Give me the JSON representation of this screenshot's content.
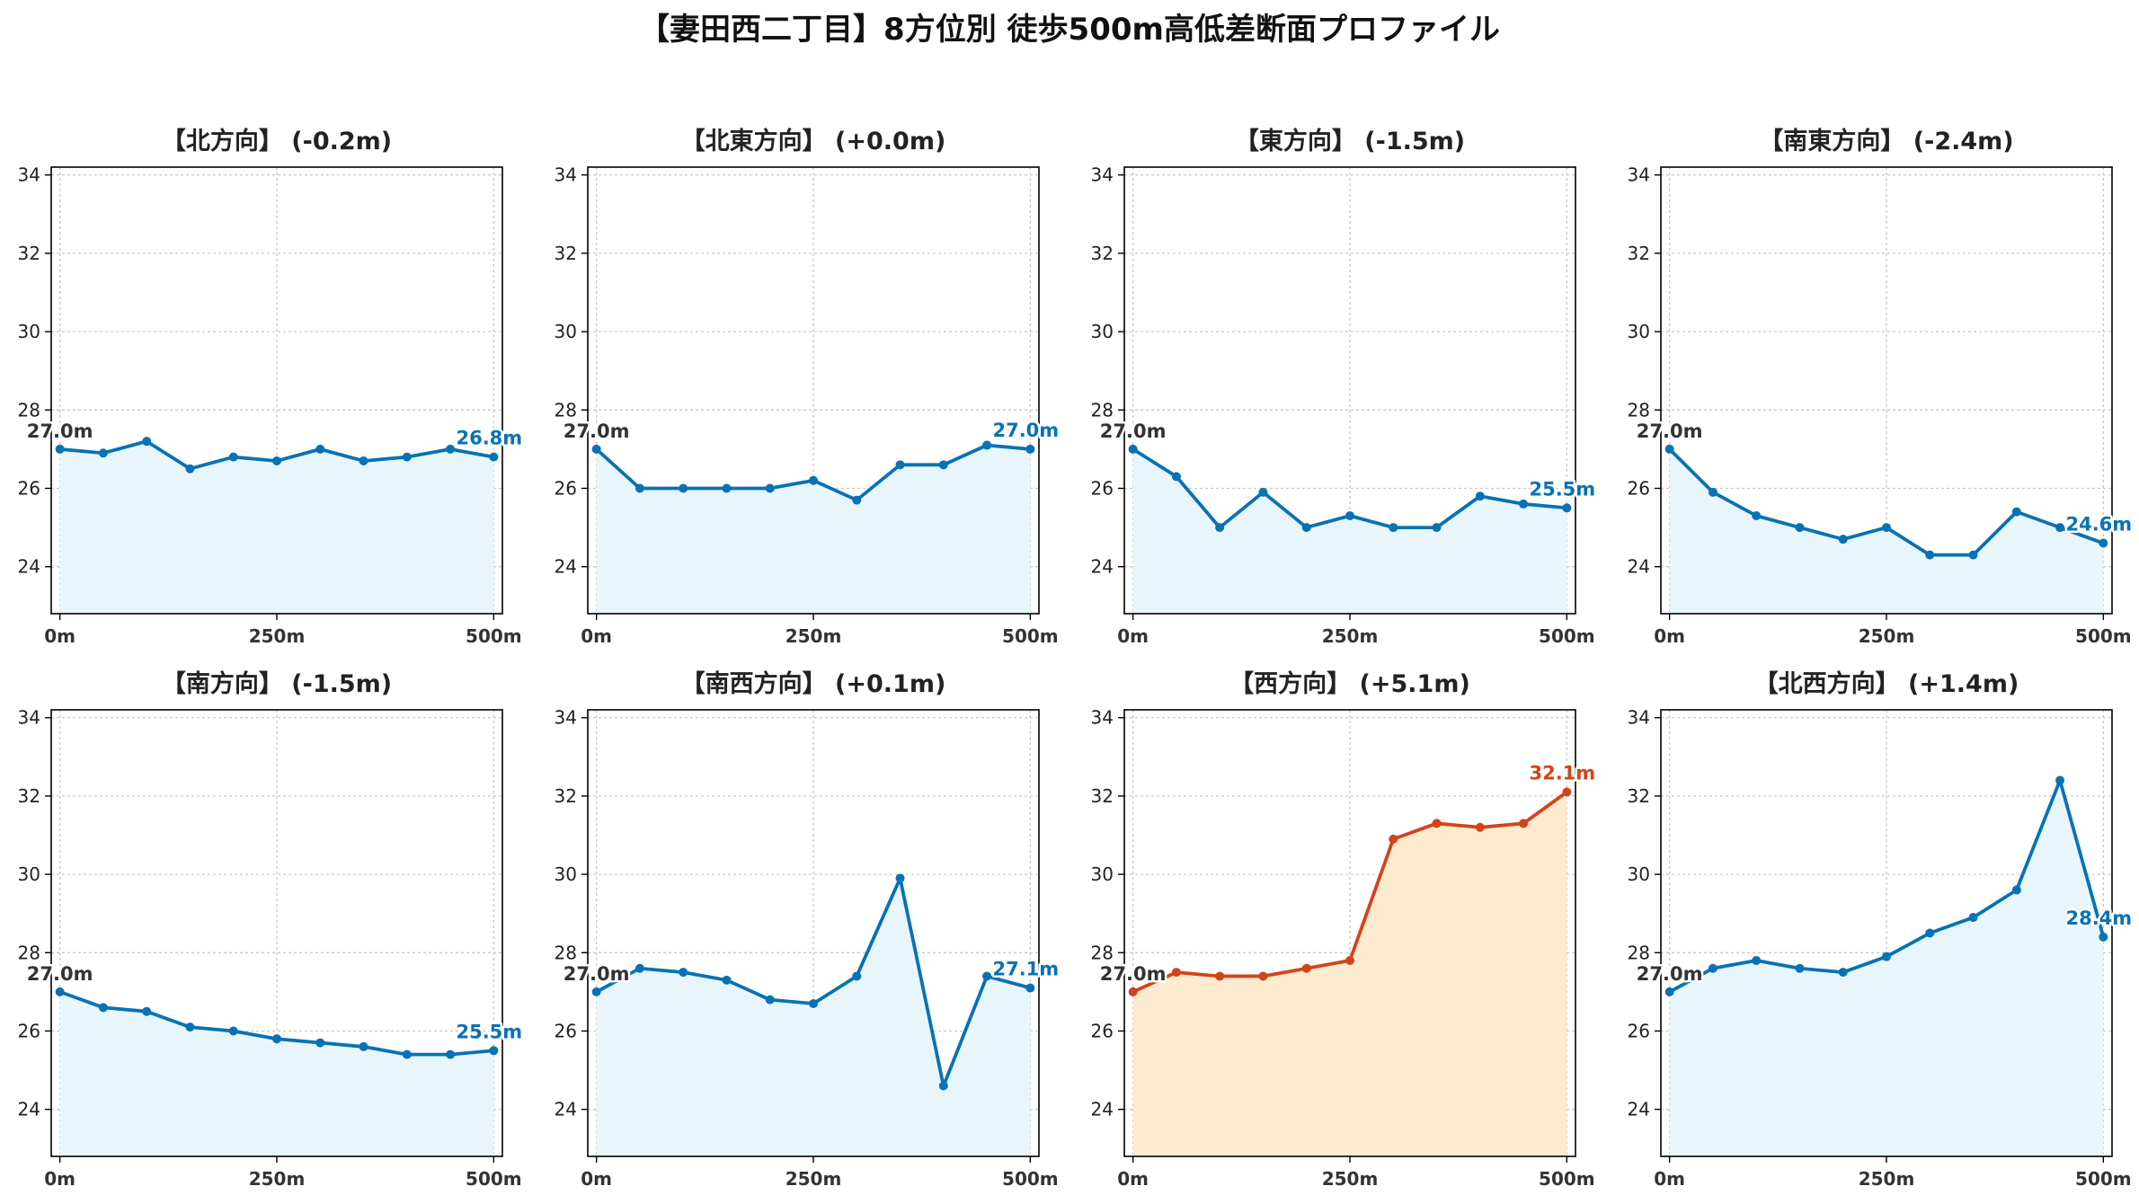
{
  "figure": {
    "title": "【妻田西二丁目】8方位別 徒歩500m高低差断面プロファイル"
  },
  "colors": {
    "line_default": "#0872b4",
    "fill_default": "#e8f6fc",
    "line_highlight": "#d2441a",
    "fill_highlight": "#fdebcf",
    "start_label": "#333333"
  },
  "chart_data": [
    {
      "type": "area",
      "title": "【北方向】 (-0.2m)",
      "x": [
        0,
        50,
        100,
        150,
        200,
        250,
        300,
        350,
        400,
        450,
        500
      ],
      "y": [
        27.0,
        26.9,
        27.2,
        26.5,
        26.8,
        26.7,
        27.0,
        26.7,
        26.8,
        27.0,
        26.8
      ],
      "start_label": "27.0m",
      "end_label": "26.8m",
      "highlight": false,
      "xticks": [
        "0m",
        "250m",
        "500m"
      ],
      "xtick_values": [
        0,
        250,
        500
      ],
      "yticks": [
        "24",
        "26",
        "28",
        "30",
        "32",
        "34"
      ],
      "ytick_values": [
        24,
        26,
        28,
        30,
        32,
        34
      ],
      "xlim": [
        -10,
        510
      ],
      "ylim": [
        22.8,
        34.2
      ],
      "grid": true
    },
    {
      "type": "area",
      "title": "【北東方向】 (+0.0m)",
      "x": [
        0,
        50,
        100,
        150,
        200,
        250,
        300,
        350,
        400,
        450,
        500
      ],
      "y": [
        27.0,
        26.0,
        26.0,
        26.0,
        26.0,
        26.2,
        25.7,
        26.6,
        26.6,
        27.1,
        27.0
      ],
      "start_label": "27.0m",
      "end_label": "27.0m",
      "highlight": false,
      "xticks": [
        "0m",
        "250m",
        "500m"
      ],
      "xtick_values": [
        0,
        250,
        500
      ],
      "yticks": [
        "24",
        "26",
        "28",
        "30",
        "32",
        "34"
      ],
      "ytick_values": [
        24,
        26,
        28,
        30,
        32,
        34
      ],
      "xlim": [
        -10,
        510
      ],
      "ylim": [
        22.8,
        34.2
      ],
      "grid": true
    },
    {
      "type": "area",
      "title": "【東方向】 (-1.5m)",
      "x": [
        0,
        50,
        100,
        150,
        200,
        250,
        300,
        350,
        400,
        450,
        500
      ],
      "y": [
        27.0,
        26.3,
        25.0,
        25.9,
        25.0,
        25.3,
        25.0,
        25.0,
        25.8,
        25.6,
        25.5
      ],
      "start_label": "27.0m",
      "end_label": "25.5m",
      "highlight": false,
      "xticks": [
        "0m",
        "250m",
        "500m"
      ],
      "xtick_values": [
        0,
        250,
        500
      ],
      "yticks": [
        "24",
        "26",
        "28",
        "30",
        "32",
        "34"
      ],
      "ytick_values": [
        24,
        26,
        28,
        30,
        32,
        34
      ],
      "xlim": [
        -10,
        510
      ],
      "ylim": [
        22.8,
        34.2
      ],
      "grid": true
    },
    {
      "type": "area",
      "title": "【南東方向】 (-2.4m)",
      "x": [
        0,
        50,
        100,
        150,
        200,
        250,
        300,
        350,
        400,
        450,
        500
      ],
      "y": [
        27.0,
        25.9,
        25.3,
        25.0,
        24.7,
        25.0,
        24.3,
        24.3,
        25.4,
        25.0,
        24.6
      ],
      "start_label": "27.0m",
      "end_label": "24.6m",
      "highlight": false,
      "xticks": [
        "0m",
        "250m",
        "500m"
      ],
      "xtick_values": [
        0,
        250,
        500
      ],
      "yticks": [
        "24",
        "26",
        "28",
        "30",
        "32",
        "34"
      ],
      "ytick_values": [
        24,
        26,
        28,
        30,
        32,
        34
      ],
      "xlim": [
        -10,
        510
      ],
      "ylim": [
        22.8,
        34.2
      ],
      "grid": true
    },
    {
      "type": "area",
      "title": "【南方向】 (-1.5m)",
      "x": [
        0,
        50,
        100,
        150,
        200,
        250,
        300,
        350,
        400,
        450,
        500
      ],
      "y": [
        27.0,
        26.6,
        26.5,
        26.1,
        26.0,
        25.8,
        25.7,
        25.6,
        25.4,
        25.4,
        25.5
      ],
      "start_label": "27.0m",
      "end_label": "25.5m",
      "highlight": false,
      "xticks": [
        "0m",
        "250m",
        "500m"
      ],
      "xtick_values": [
        0,
        250,
        500
      ],
      "yticks": [
        "24",
        "26",
        "28",
        "30",
        "32",
        "34"
      ],
      "ytick_values": [
        24,
        26,
        28,
        30,
        32,
        34
      ],
      "xlim": [
        -10,
        510
      ],
      "ylim": [
        22.8,
        34.2
      ],
      "grid": true
    },
    {
      "type": "area",
      "title": "【南西方向】 (+0.1m)",
      "x": [
        0,
        50,
        100,
        150,
        200,
        250,
        300,
        350,
        400,
        450,
        500
      ],
      "y": [
        27.0,
        27.6,
        27.5,
        27.3,
        26.8,
        26.7,
        27.4,
        29.9,
        24.6,
        27.4,
        27.1
      ],
      "start_label": "27.0m",
      "end_label": "27.1m",
      "highlight": false,
      "xticks": [
        "0m",
        "250m",
        "500m"
      ],
      "xtick_values": [
        0,
        250,
        500
      ],
      "yticks": [
        "24",
        "26",
        "28",
        "30",
        "32",
        "34"
      ],
      "ytick_values": [
        24,
        26,
        28,
        30,
        32,
        34
      ],
      "xlim": [
        -10,
        510
      ],
      "ylim": [
        22.8,
        34.2
      ],
      "grid": true
    },
    {
      "type": "area",
      "title": "【西方向】 (+5.1m)",
      "x": [
        0,
        50,
        100,
        150,
        200,
        250,
        300,
        350,
        400,
        450,
        500
      ],
      "y": [
        27.0,
        27.5,
        27.4,
        27.4,
        27.6,
        27.8,
        30.9,
        31.3,
        31.2,
        31.3,
        32.1
      ],
      "start_label": "27.0m",
      "end_label": "32.1m",
      "highlight": true,
      "xticks": [
        "0m",
        "250m",
        "500m"
      ],
      "xtick_values": [
        0,
        250,
        500
      ],
      "yticks": [
        "24",
        "26",
        "28",
        "30",
        "32",
        "34"
      ],
      "ytick_values": [
        24,
        26,
        28,
        30,
        32,
        34
      ],
      "xlim": [
        -10,
        510
      ],
      "ylim": [
        22.8,
        34.2
      ],
      "grid": true
    },
    {
      "type": "area",
      "title": "【北西方向】 (+1.4m)",
      "x": [
        0,
        50,
        100,
        150,
        200,
        250,
        300,
        350,
        400,
        450,
        500
      ],
      "y": [
        27.0,
        27.6,
        27.8,
        27.6,
        27.5,
        27.9,
        28.5,
        28.9,
        29.6,
        32.4,
        28.4
      ],
      "start_label": "27.0m",
      "end_label": "28.4m",
      "highlight": false,
      "xticks": [
        "0m",
        "250m",
        "500m"
      ],
      "xtick_values": [
        0,
        250,
        500
      ],
      "yticks": [
        "24",
        "26",
        "28",
        "30",
        "32",
        "34"
      ],
      "ytick_values": [
        24,
        26,
        28,
        30,
        32,
        34
      ],
      "xlim": [
        -10,
        510
      ],
      "ylim": [
        22.8,
        34.2
      ],
      "grid": true
    }
  ]
}
